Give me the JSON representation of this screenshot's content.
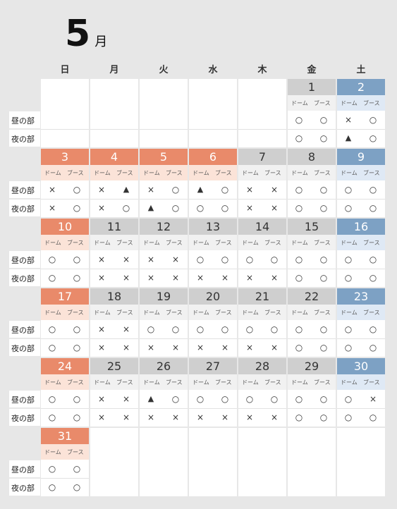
{
  "month": {
    "number": "5",
    "unit": "月"
  },
  "weekdays": [
    "日",
    "月",
    "火",
    "水",
    "木",
    "金",
    "土"
  ],
  "row_labels": {
    "day": "昼の部",
    "night": "夜の部"
  },
  "col_labels": {
    "dome": "ドーム",
    "booth": "ブース"
  },
  "colors": {
    "holiday_header": "#e98a6a",
    "saturday_header": "#7da1c4",
    "weekday_header": "#cfcfcf"
  },
  "weeks": [
    [
      null,
      null,
      null,
      null,
      null,
      {
        "date": "1",
        "type": "weekday",
        "day": [
          "○",
          "○"
        ],
        "night": [
          "○",
          "○"
        ]
      },
      {
        "date": "2",
        "type": "saturday",
        "day": [
          "×",
          "○"
        ],
        "night": [
          "▲",
          "○"
        ]
      }
    ],
    [
      {
        "date": "3",
        "type": "holiday",
        "day": [
          "×",
          "○"
        ],
        "night": [
          "×",
          "○"
        ]
      },
      {
        "date": "4",
        "type": "holiday",
        "day": [
          "×",
          "▲"
        ],
        "night": [
          "×",
          "○"
        ]
      },
      {
        "date": "5",
        "type": "holiday",
        "day": [
          "×",
          "○"
        ],
        "night": [
          "▲",
          "○"
        ]
      },
      {
        "date": "6",
        "type": "holiday",
        "day": [
          "▲",
          "○"
        ],
        "night": [
          "○",
          "○"
        ]
      },
      {
        "date": "7",
        "type": "weekday",
        "day": [
          "×",
          "×"
        ],
        "night": [
          "×",
          "×"
        ]
      },
      {
        "date": "8",
        "type": "weekday",
        "day": [
          "○",
          "○"
        ],
        "night": [
          "○",
          "○"
        ]
      },
      {
        "date": "9",
        "type": "saturday",
        "day": [
          "○",
          "○"
        ],
        "night": [
          "○",
          "○"
        ]
      }
    ],
    [
      {
        "date": "10",
        "type": "holiday",
        "day": [
          "○",
          "○"
        ],
        "night": [
          "○",
          "○"
        ]
      },
      {
        "date": "11",
        "type": "weekday",
        "day": [
          "×",
          "×"
        ],
        "night": [
          "×",
          "×"
        ]
      },
      {
        "date": "12",
        "type": "weekday",
        "day": [
          "×",
          "×"
        ],
        "night": [
          "×",
          "×"
        ]
      },
      {
        "date": "13",
        "type": "weekday",
        "day": [
          "○",
          "○"
        ],
        "night": [
          "×",
          "×"
        ]
      },
      {
        "date": "14",
        "type": "weekday",
        "day": [
          "○",
          "○"
        ],
        "night": [
          "×",
          "×"
        ]
      },
      {
        "date": "15",
        "type": "weekday",
        "day": [
          "○",
          "○"
        ],
        "night": [
          "○",
          "○"
        ]
      },
      {
        "date": "16",
        "type": "saturday",
        "day": [
          "○",
          "○"
        ],
        "night": [
          "○",
          "○"
        ]
      }
    ],
    [
      {
        "date": "17",
        "type": "holiday",
        "day": [
          "○",
          "○"
        ],
        "night": [
          "○",
          "○"
        ]
      },
      {
        "date": "18",
        "type": "weekday",
        "day": [
          "×",
          "×"
        ],
        "night": [
          "×",
          "×"
        ]
      },
      {
        "date": "19",
        "type": "weekday",
        "day": [
          "○",
          "○"
        ],
        "night": [
          "×",
          "×"
        ]
      },
      {
        "date": "20",
        "type": "weekday",
        "day": [
          "○",
          "○"
        ],
        "night": [
          "×",
          "×"
        ]
      },
      {
        "date": "21",
        "type": "weekday",
        "day": [
          "○",
          "○"
        ],
        "night": [
          "×",
          "×"
        ]
      },
      {
        "date": "22",
        "type": "weekday",
        "day": [
          "○",
          "○"
        ],
        "night": [
          "○",
          "○"
        ]
      },
      {
        "date": "23",
        "type": "saturday",
        "day": [
          "○",
          "○"
        ],
        "night": [
          "○",
          "○"
        ]
      }
    ],
    [
      {
        "date": "24",
        "type": "holiday",
        "day": [
          "○",
          "○"
        ],
        "night": [
          "○",
          "○"
        ]
      },
      {
        "date": "25",
        "type": "weekday",
        "day": [
          "×",
          "×"
        ],
        "night": [
          "×",
          "×"
        ]
      },
      {
        "date": "26",
        "type": "weekday",
        "day": [
          "▲",
          "○"
        ],
        "night": [
          "×",
          "×"
        ]
      },
      {
        "date": "27",
        "type": "weekday",
        "day": [
          "○",
          "○"
        ],
        "night": [
          "×",
          "×"
        ]
      },
      {
        "date": "28",
        "type": "weekday",
        "day": [
          "○",
          "○"
        ],
        "night": [
          "×",
          "×"
        ]
      },
      {
        "date": "29",
        "type": "weekday",
        "day": [
          "○",
          "○"
        ],
        "night": [
          "○",
          "○"
        ]
      },
      {
        "date": "30",
        "type": "saturday",
        "day": [
          "○",
          "×"
        ],
        "night": [
          "○",
          "○"
        ]
      }
    ],
    [
      {
        "date": "31",
        "type": "holiday",
        "day": [
          "○",
          "○"
        ],
        "night": [
          "○",
          "○"
        ]
      },
      null,
      null,
      null,
      null,
      null,
      null
    ]
  ]
}
